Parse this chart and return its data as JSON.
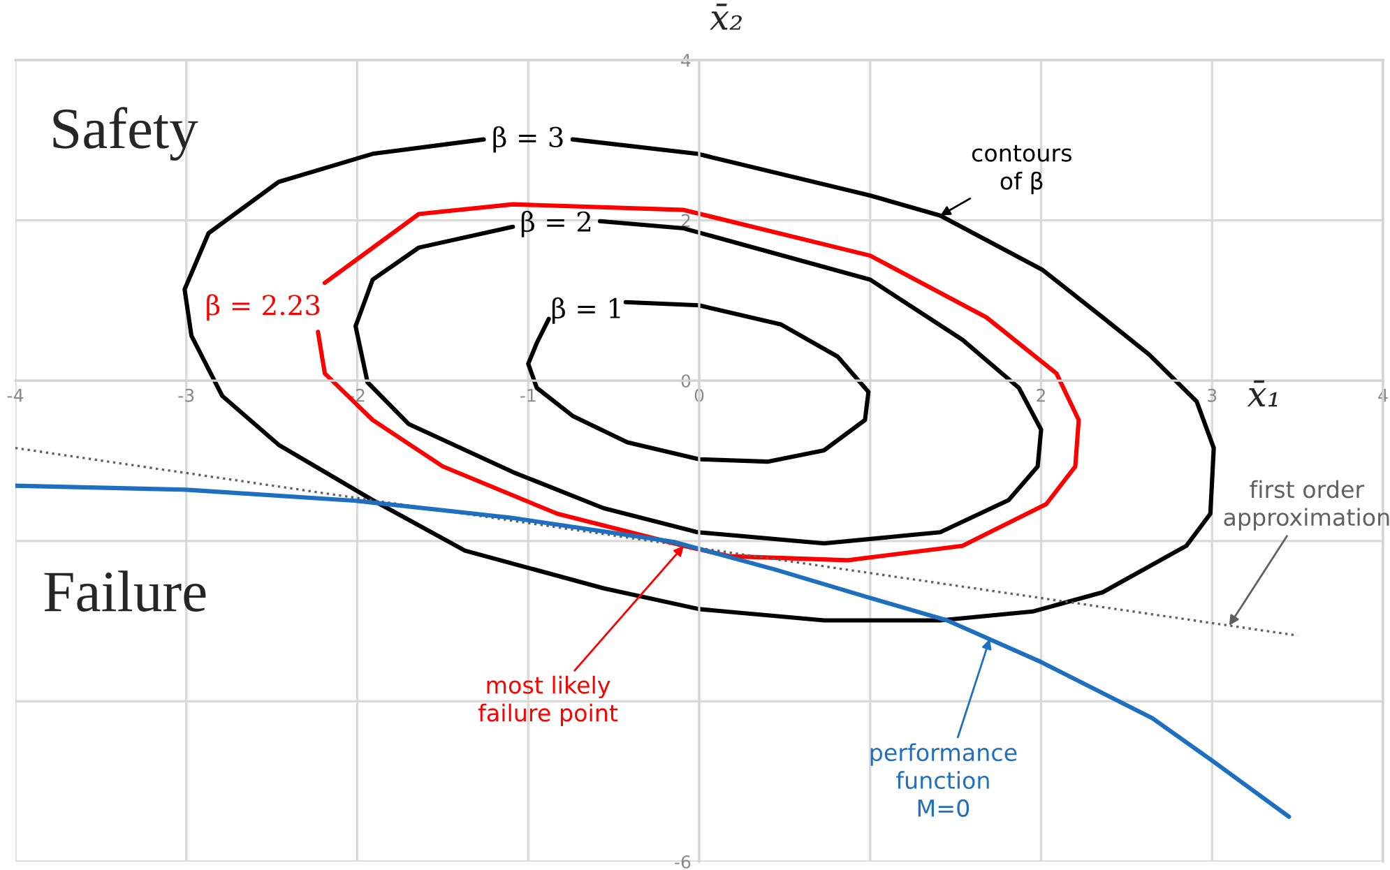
{
  "chart_data": {
    "type": "line",
    "xlabel": "x̄₁",
    "ylabel": "x̄₂",
    "xlim": [
      -4,
      4
    ],
    "ylim": [
      -6,
      4
    ],
    "xticks": [
      -4,
      -3,
      -2,
      -1,
      0,
      {
        "value": 1,
        "label": null
      },
      2,
      3,
      4
    ],
    "yticks": [
      4,
      2,
      0,
      {
        "value": -2,
        "label": null
      },
      {
        "value": -4,
        "label": null
      },
      -6
    ],
    "grid": true,
    "marker": "none",
    "line_style": "solid",
    "series": [
      {
        "name": "β = 3",
        "color": "#000000",
        "x": [
          -0.74,
          -0.01,
          1.0,
          1.41,
          2.01,
          2.36,
          2.63,
          2.91,
          3.01,
          2.99,
          2.85,
          2.36,
          1.95,
          1.41,
          0.73,
          0.0,
          -0.56,
          -1.37,
          -1.91,
          -2.46,
          -2.79,
          -2.97,
          -3.01,
          -2.87,
          -2.46,
          -1.91,
          -1.26
        ],
        "values": [
          3.01,
          2.83,
          2.31,
          2.06,
          1.38,
          0.79,
          0.33,
          -0.26,
          -0.84,
          -1.66,
          -2.06,
          -2.64,
          -2.88,
          -2.99,
          -2.99,
          -2.85,
          -2.59,
          -2.12,
          -1.49,
          -0.8,
          -0.19,
          0.56,
          1.14,
          1.84,
          2.48,
          2.83,
          3.01
        ]
      },
      {
        "name": "β = 2.23",
        "color": "#ff0000",
        "x": [
          -2.19,
          -1.64,
          -1.09,
          -0.09,
          1.0,
          1.68,
          2.09,
          2.22,
          2.2,
          2.03,
          1.54,
          0.87,
          0.18,
          -0.09,
          -0.83,
          -1.5,
          -1.91,
          -2.19,
          -2.23
        ],
        "values": [
          1.22,
          2.08,
          2.2,
          2.13,
          1.56,
          0.79,
          0.09,
          -0.49,
          -1.07,
          -1.54,
          -2.06,
          -2.24,
          -2.19,
          -2.06,
          -1.66,
          -1.07,
          -0.49,
          0.09,
          0.61
        ]
      },
      {
        "name": "β = 2",
        "color": "#000000",
        "x": [
          -0.58,
          -0.09,
          1.0,
          1.54,
          1.87,
          2.0,
          1.98,
          1.81,
          1.41,
          0.73,
          -0.01,
          -0.56,
          -1.09,
          -1.7,
          -1.94,
          -2.01,
          -1.91,
          -1.64,
          -1.09
        ],
        "values": [
          1.99,
          1.9,
          1.26,
          0.51,
          -0.09,
          -0.61,
          -1.07,
          -1.49,
          -1.89,
          -2.03,
          -1.89,
          -1.59,
          -1.14,
          -0.54,
          -0.02,
          0.68,
          1.26,
          1.66,
          1.92
        ]
      },
      {
        "name": "β = 1",
        "color": "#000000",
        "x": [
          -0.43,
          0.0,
          0.48,
          0.81,
          0.99,
          0.97,
          0.73,
          0.4,
          0.0,
          -0.42,
          -0.74,
          -0.95,
          -1.0,
          -0.95,
          -0.88
        ],
        "values": [
          0.98,
          0.94,
          0.7,
          0.3,
          -0.14,
          -0.49,
          -0.87,
          -1.01,
          -0.98,
          -0.77,
          -0.44,
          -0.09,
          0.21,
          0.47,
          0.77
        ]
      },
      {
        "color": "#606060",
        "line_style": "dotted",
        "x": [
          -4,
          3.5
        ],
        "values": [
          -0.84,
          -3.18
        ]
      },
      {
        "color": "#1f6fc0",
        "x": [
          -4,
          -3,
          -2,
          -1.1,
          -0.15,
          0.45,
          1.0,
          1.45,
          2.0,
          2.65,
          3.0,
          3.45
        ],
        "values": [
          -1.31,
          -1.36,
          -1.5,
          -1.71,
          -2.01,
          -2.36,
          -2.71,
          -2.99,
          -3.51,
          -4.21,
          -4.74,
          -5.44
        ]
      }
    ],
    "annotations": [
      "Safety",
      "Failure",
      {
        "text": "contours\nof β",
        "x": 1.41,
        "y": 2.06
      },
      {
        "text": "first order\napproximation",
        "x": 3.1,
        "y": -3.055
      },
      {
        "text": "most likely\nfailure point",
        "x": -0.09,
        "y": -2.06
      },
      {
        "text": "performance\nfunction\nM=0",
        "x": 1.7,
        "y": -3.22
      }
    ]
  }
}
